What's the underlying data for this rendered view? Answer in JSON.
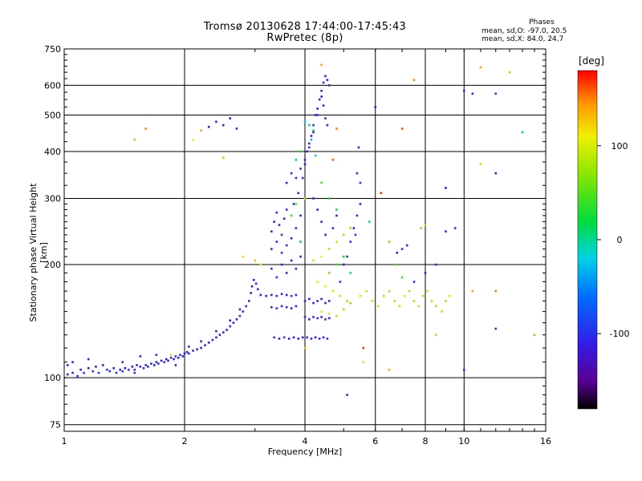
{
  "header": {
    "title_line1": "Tromsø 20130628 17:44:00-17:45:43",
    "title_line2": "RwPretec (8p)"
  },
  "stats": {
    "heading": "Phases",
    "line_o": "mean, sd,O: -97.0, 20.5",
    "line_x": "mean, sd,X:  84.0, 24.7"
  },
  "colorbar": {
    "unit": "[deg]",
    "range": [
      -180,
      180
    ],
    "tick_values": [
      100,
      0,
      -100
    ],
    "tick_labels": [
      "100",
      "0",
      "-100"
    ]
  },
  "chart_data": {
    "type": "scatter",
    "xlabel": "Frequency [MHz]",
    "ylabel": "Stationary phase Virtual Height [km]",
    "x_scale": "log",
    "y_scale": "log",
    "xlim": [
      1,
      16
    ],
    "ylim": [
      72,
      750
    ],
    "x_ticks": [
      1,
      2,
      4,
      6,
      8,
      10,
      16
    ],
    "x_tick_labels": [
      "1",
      "2",
      "4",
      "6",
      "8",
      "10",
      "16"
    ],
    "y_ticks": [
      75,
      100,
      200,
      300,
      400,
      500,
      600,
      750
    ],
    "y_tick_labels": [
      "75",
      "100",
      "200",
      "300",
      "400",
      "500",
      "600",
      "750"
    ],
    "grid": true,
    "color_encoding": "phase (deg)",
    "points": [
      [
        1.02,
        102,
        -110
      ],
      [
        1.05,
        103,
        -100
      ],
      [
        1.08,
        101,
        -95
      ],
      [
        1.1,
        105,
        -105
      ],
      [
        1.12,
        103,
        -100
      ],
      [
        1.15,
        106,
        -110
      ],
      [
        1.18,
        104,
        -100
      ],
      [
        1.2,
        107,
        -115
      ],
      [
        1.22,
        103,
        -100
      ],
      [
        1.25,
        108,
        -110
      ],
      [
        1.28,
        105,
        -95
      ],
      [
        1.3,
        104,
        -100
      ],
      [
        1.33,
        106,
        -110
      ],
      [
        1.35,
        103,
        -100
      ],
      [
        1.38,
        105,
        -105
      ],
      [
        1.4,
        104,
        -100
      ],
      [
        1.42,
        106,
        -110
      ],
      [
        1.45,
        105,
        -100
      ],
      [
        1.48,
        107,
        -115
      ],
      [
        1.5,
        105,
        -100
      ],
      [
        1.52,
        108,
        -105
      ],
      [
        1.55,
        107,
        -110
      ],
      [
        1.58,
        106,
        -100
      ],
      [
        1.6,
        108,
        -105
      ],
      [
        1.62,
        107,
        -110
      ],
      [
        1.65,
        109,
        -100
      ],
      [
        1.68,
        108,
        -115
      ],
      [
        1.7,
        110,
        -100
      ],
      [
        1.72,
        109,
        -105
      ],
      [
        1.75,
        111,
        -110
      ],
      [
        1.78,
        110,
        -100
      ],
      [
        1.8,
        112,
        -110
      ],
      [
        1.82,
        111,
        -100
      ],
      [
        1.85,
        113,
        -105
      ],
      [
        1.88,
        112,
        -110
      ],
      [
        1.9,
        114,
        -100
      ],
      [
        1.93,
        113,
        -110
      ],
      [
        1.95,
        115,
        -100
      ],
      [
        1.98,
        114,
        -105
      ],
      [
        2.0,
        116,
        -110
      ],
      [
        2.03,
        117,
        -100
      ],
      [
        2.05,
        116,
        -110
      ],
      [
        2.1,
        118,
        -100
      ],
      [
        2.15,
        119,
        -105
      ],
      [
        2.2,
        120,
        -110
      ],
      [
        2.25,
        122,
        -100
      ],
      [
        2.3,
        124,
        -110
      ],
      [
        2.35,
        126,
        -100
      ],
      [
        2.4,
        128,
        -105
      ],
      [
        2.45,
        130,
        -110
      ],
      [
        2.5,
        132,
        -100
      ],
      [
        2.55,
        134,
        -110
      ],
      [
        2.6,
        137,
        -100
      ],
      [
        2.65,
        140,
        -105
      ],
      [
        2.7,
        143,
        -110
      ],
      [
        2.75,
        146,
        -100
      ],
      [
        2.8,
        150,
        -110
      ],
      [
        2.85,
        155,
        -100
      ],
      [
        2.9,
        160,
        -105
      ],
      [
        2.93,
        168,
        -110
      ],
      [
        2.95,
        175,
        -100
      ],
      [
        2.98,
        182,
        -110
      ],
      [
        3.02,
        178,
        -100
      ],
      [
        3.05,
        172,
        -105
      ],
      [
        1.02,
        108,
        -110
      ],
      [
        1.05,
        110,
        -100
      ],
      [
        1.15,
        112,
        -105
      ],
      [
        1.4,
        110,
        -100
      ],
      [
        1.55,
        114,
        -110
      ],
      [
        1.7,
        115,
        -100
      ],
      [
        1.5,
        103,
        -100
      ],
      [
        1.9,
        108,
        -110
      ],
      [
        2.05,
        121,
        -100
      ],
      [
        2.2,
        125,
        -110
      ],
      [
        2.4,
        133,
        -100
      ],
      [
        2.6,
        142,
        -110
      ],
      [
        2.75,
        152,
        -100
      ],
      [
        3.1,
        166,
        -110
      ],
      [
        3.2,
        165,
        -100
      ],
      [
        3.3,
        166,
        -105
      ],
      [
        3.4,
        165,
        -110
      ],
      [
        3.5,
        167,
        -100
      ],
      [
        3.6,
        166,
        -110
      ],
      [
        3.7,
        165,
        -100
      ],
      [
        3.8,
        166,
        -105
      ],
      [
        3.3,
        154,
        -110
      ],
      [
        3.4,
        153,
        -100
      ],
      [
        3.5,
        155,
        -110
      ],
      [
        3.6,
        154,
        -100
      ],
      [
        3.7,
        153,
        -105
      ],
      [
        3.8,
        155,
        -110
      ],
      [
        3.35,
        128,
        -100
      ],
      [
        3.45,
        127,
        -110
      ],
      [
        3.55,
        128,
        -100
      ],
      [
        3.65,
        127,
        -105
      ],
      [
        3.75,
        128,
        -110
      ],
      [
        3.85,
        127,
        -100
      ],
      [
        3.95,
        128,
        -110
      ],
      [
        4.05,
        128,
        -100
      ],
      [
        4.15,
        127,
        -105
      ],
      [
        4.25,
        128,
        -110
      ],
      [
        4.35,
        127,
        -100
      ],
      [
        4.45,
        128,
        -110
      ],
      [
        4.55,
        127,
        -100
      ],
      [
        3.3,
        245,
        -105
      ],
      [
        3.35,
        260,
        -110
      ],
      [
        3.4,
        275,
        -100
      ],
      [
        3.45,
        255,
        -110
      ],
      [
        3.5,
        240,
        -100
      ],
      [
        3.55,
        265,
        -105
      ],
      [
        3.6,
        280,
        -110
      ],
      [
        3.3,
        220,
        -100
      ],
      [
        3.4,
        230,
        -110
      ],
      [
        3.5,
        215,
        -100
      ],
      [
        3.6,
        225,
        -105
      ],
      [
        3.7,
        235,
        -110
      ],
      [
        3.8,
        250,
        -100
      ],
      [
        3.9,
        270,
        -110
      ],
      [
        3.3,
        195,
        -100
      ],
      [
        3.4,
        185,
        -105
      ],
      [
        3.5,
        200,
        -110
      ],
      [
        3.6,
        190,
        -100
      ],
      [
        3.7,
        205,
        -110
      ],
      [
        3.8,
        195,
        -100
      ],
      [
        3.9,
        210,
        -105
      ],
      [
        3.6,
        330,
        -110
      ],
      [
        3.7,
        350,
        -100
      ],
      [
        3.8,
        340,
        -110
      ],
      [
        3.9,
        360,
        -100
      ],
      [
        4.0,
        380,
        -105
      ],
      [
        4.05,
        400,
        -110
      ],
      [
        4.1,
        420,
        -100
      ],
      [
        4.15,
        440,
        -110
      ],
      [
        4.2,
        470,
        -100
      ],
      [
        4.25,
        500,
        -105
      ],
      [
        4.3,
        520,
        -110
      ],
      [
        4.35,
        550,
        -100
      ],
      [
        4.4,
        580,
        -110
      ],
      [
        4.45,
        610,
        -100
      ],
      [
        4.5,
        635,
        -105
      ],
      [
        4.55,
        620,
        -110
      ],
      [
        4.6,
        600,
        -100
      ],
      [
        4.4,
        560,
        -110
      ],
      [
        4.3,
        500,
        -100
      ],
      [
        4.2,
        450,
        -110
      ],
      [
        4.1,
        410,
        -100
      ],
      [
        4.0,
        370,
        -110
      ],
      [
        3.95,
        340,
        -100
      ],
      [
        3.85,
        310,
        -110
      ],
      [
        3.75,
        290,
        -100
      ],
      [
        4.45,
        530,
        -110
      ],
      [
        4.5,
        490,
        -100
      ],
      [
        4.55,
        470,
        -110
      ],
      [
        4.2,
        300,
        -100
      ],
      [
        4.3,
        280,
        -110
      ],
      [
        4.4,
        260,
        -100
      ],
      [
        4.5,
        240,
        -105
      ],
      [
        4.6,
        220,
        -110
      ],
      [
        4.7,
        250,
        -100
      ],
      [
        4.8,
        270,
        -110
      ],
      [
        4.0,
        160,
        -100
      ],
      [
        4.1,
        162,
        -110
      ],
      [
        4.2,
        158,
        -105
      ],
      [
        4.3,
        160,
        -100
      ],
      [
        4.4,
        162,
        -110
      ],
      [
        4.5,
        158,
        -100
      ],
      [
        4.6,
        160,
        -110
      ],
      [
        4.0,
        145,
        -100
      ],
      [
        4.1,
        143,
        -110
      ],
      [
        4.2,
        145,
        -105
      ],
      [
        4.3,
        144,
        -100
      ],
      [
        4.4,
        145,
        -110
      ],
      [
        4.5,
        143,
        -100
      ],
      [
        4.6,
        144,
        -110
      ],
      [
        4.9,
        180,
        -100
      ],
      [
        5.0,
        200,
        -110
      ],
      [
        5.1,
        210,
        -100
      ],
      [
        5.2,
        230,
        -105
      ],
      [
        5.3,
        250,
        -110
      ],
      [
        5.4,
        270,
        -100
      ],
      [
        5.5,
        290,
        -110
      ],
      [
        5.35,
        240,
        -100
      ],
      [
        5.4,
        350,
        -110
      ],
      [
        5.5,
        330,
        -100
      ],
      [
        5.45,
        410,
        -105
      ],
      [
        6.8,
        215,
        -110
      ],
      [
        7.0,
        220,
        -100
      ],
      [
        7.2,
        225,
        -110
      ],
      [
        7.5,
        180,
        -100
      ],
      [
        8.0,
        190,
        -110
      ],
      [
        8.5,
        200,
        -100
      ],
      [
        9.0,
        245,
        -105
      ],
      [
        6.0,
        525,
        -110
      ],
      [
        9.5,
        250,
        -100
      ],
      [
        10.5,
        570,
        -110
      ],
      [
        12.0,
        570,
        -100
      ],
      [
        12.0,
        350,
        -110
      ],
      [
        10.0,
        580,
        -100
      ],
      [
        9.0,
        320,
        -110
      ],
      [
        12.0,
        135,
        -105
      ],
      [
        10.0,
        105,
        -100
      ],
      [
        5.1,
        90,
        -110
      ],
      [
        2.3,
        465,
        -100
      ],
      [
        2.5,
        470,
        -110
      ],
      [
        2.7,
        460,
        -100
      ],
      [
        2.6,
        490,
        -110
      ],
      [
        2.4,
        480,
        -105
      ],
      [
        4.2,
        205,
        120
      ],
      [
        4.4,
        210,
        110
      ],
      [
        4.6,
        220,
        100
      ],
      [
        4.8,
        230,
        90
      ],
      [
        5.0,
        240,
        80
      ],
      [
        5.2,
        250,
        70
      ],
      [
        4.3,
        180,
        115
      ],
      [
        4.5,
        175,
        105
      ],
      [
        4.7,
        170,
        95
      ],
      [
        4.9,
        165,
        85
      ],
      [
        5.1,
        160,
        75
      ],
      [
        4.4,
        150,
        110
      ],
      [
        4.6,
        148,
        100
      ],
      [
        4.8,
        146,
        90
      ],
      [
        5.0,
        152,
        80
      ],
      [
        5.2,
        158,
        70
      ],
      [
        5.5,
        165,
        100
      ],
      [
        5.7,
        170,
        90
      ],
      [
        5.9,
        160,
        80
      ],
      [
        6.1,
        155,
        95
      ],
      [
        6.3,
        165,
        85
      ],
      [
        6.5,
        170,
        75
      ],
      [
        6.7,
        160,
        90
      ],
      [
        6.9,
        155,
        80
      ],
      [
        7.1,
        165,
        95
      ],
      [
        7.3,
        170,
        85
      ],
      [
        7.5,
        160,
        75
      ],
      [
        7.7,
        155,
        90
      ],
      [
        7.9,
        165,
        80
      ],
      [
        8.1,
        170,
        95
      ],
      [
        8.3,
        160,
        85
      ],
      [
        8.5,
        155,
        75
      ],
      [
        8.8,
        150,
        90
      ],
      [
        9.0,
        160,
        80
      ],
      [
        9.2,
        165,
        95
      ],
      [
        7.8,
        250,
        70
      ],
      [
        8.0,
        255,
        85
      ],
      [
        6.5,
        230,
        60
      ],
      [
        6.8,
        200,
        50
      ],
      [
        7.0,
        185,
        40
      ],
      [
        4.6,
        190,
        60
      ],
      [
        4.8,
        200,
        40
      ],
      [
        5.0,
        210,
        20
      ],
      [
        5.2,
        190,
        0
      ],
      [
        4.4,
        330,
        50
      ],
      [
        4.6,
        300,
        30
      ],
      [
        4.8,
        280,
        10
      ],
      [
        3.9,
        230,
        20
      ],
      [
        3.7,
        270,
        40
      ],
      [
        3.8,
        290,
        60
      ],
      [
        4.0,
        300,
        80
      ],
      [
        1.6,
        460,
        150
      ],
      [
        1.5,
        430,
        130
      ],
      [
        2.2,
        455,
        140
      ],
      [
        2.1,
        430,
        110
      ],
      [
        1.85,
        115,
        120
      ],
      [
        2.5,
        385,
        130
      ],
      [
        4.4,
        680,
        140
      ],
      [
        7.0,
        460,
        160
      ],
      [
        7.5,
        620,
        150
      ],
      [
        11.0,
        670,
        140
      ],
      [
        13.0,
        650,
        130
      ],
      [
        11.0,
        370,
        120
      ],
      [
        12.0,
        170,
        150
      ],
      [
        4.0,
        120,
        130
      ],
      [
        5.6,
        110,
        120
      ],
      [
        6.5,
        105,
        140
      ],
      [
        14.0,
        450,
        10
      ],
      [
        15.0,
        130,
        60
      ],
      [
        8.5,
        130,
        80
      ],
      [
        10.5,
        170,
        140
      ],
      [
        2.8,
        210,
        120
      ],
      [
        3.0,
        205,
        130
      ],
      [
        3.1,
        200,
        110
      ],
      [
        5.6,
        120,
        170
      ],
      [
        4.8,
        460,
        150
      ],
      [
        4.7,
        380,
        160
      ],
      [
        6.2,
        310,
        170
      ],
      [
        5.8,
        260,
        -10
      ],
      [
        4.0,
        480,
        -20
      ],
      [
        4.1,
        470,
        0
      ],
      [
        4.2,
        455,
        20
      ],
      [
        3.9,
        400,
        30
      ],
      [
        3.8,
        380,
        10
      ],
      [
        4.15,
        430,
        -30
      ],
      [
        4.25,
        390,
        -10
      ]
    ]
  }
}
